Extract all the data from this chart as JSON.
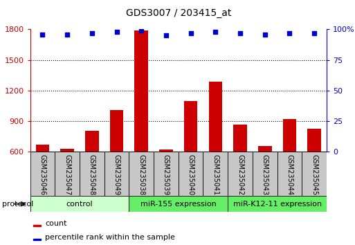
{
  "title": "GDS3007 / 203415_at",
  "samples": [
    "GSM235046",
    "GSM235047",
    "GSM235048",
    "GSM235049",
    "GSM235038",
    "GSM235039",
    "GSM235040",
    "GSM235041",
    "GSM235042",
    "GSM235043",
    "GSM235044",
    "GSM235045"
  ],
  "counts": [
    670,
    630,
    810,
    1010,
    1790,
    625,
    1100,
    1290,
    870,
    660,
    920,
    830
  ],
  "percentile_ranks": [
    96,
    96,
    97,
    98,
    99,
    95,
    97,
    98,
    97,
    96,
    97,
    97
  ],
  "groups": [
    {
      "label": "control",
      "start": 0,
      "end": 4,
      "color": "#ccffcc"
    },
    {
      "label": "miR-155 expression",
      "start": 4,
      "end": 8,
      "color": "#66ee66"
    },
    {
      "label": "miR-K12-11 expression",
      "start": 8,
      "end": 12,
      "color": "#66ee66"
    }
  ],
  "bar_color": "#cc0000",
  "dot_color": "#0000cc",
  "ylim_left": [
    600,
    1800
  ],
  "ylim_right": [
    0,
    100
  ],
  "yticks_left": [
    600,
    900,
    1200,
    1500,
    1800
  ],
  "yticks_right": [
    0,
    25,
    50,
    75,
    100
  ],
  "background_color": "#ffffff",
  "label_count": "count",
  "label_percentile": "percentile rank within the sample",
  "protocol_label": "protocol",
  "bar_width": 0.55,
  "tick_label_fontsize": 7,
  "title_fontsize": 10,
  "group_fontsize": 8,
  "legend_fontsize": 8
}
